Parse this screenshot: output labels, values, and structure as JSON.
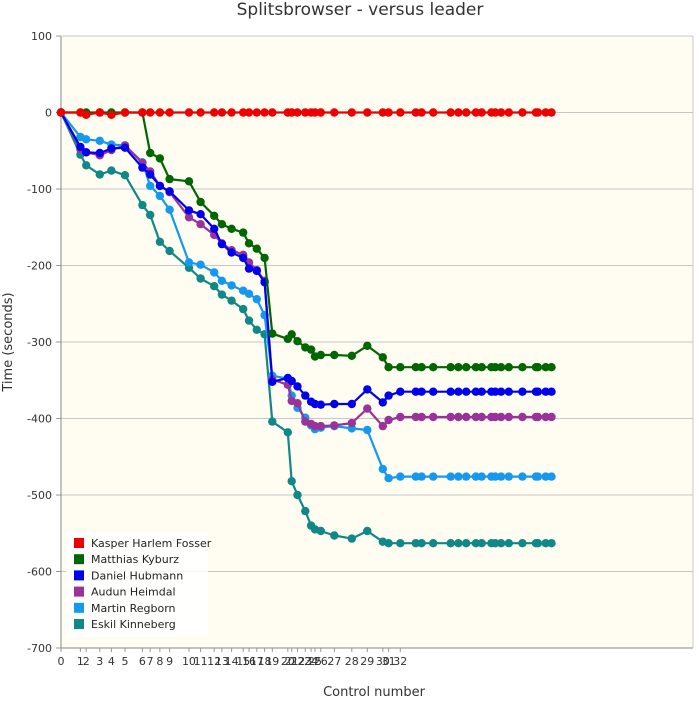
{
  "chart_data": {
    "type": "line",
    "title": "Splitsbrowser - versus leader",
    "xlabel": "Control number",
    "ylabel": "Time (seconds)",
    "ylim": [
      -700,
      100
    ],
    "yticks": [
      100,
      0,
      -100,
      -200,
      -300,
      -400,
      -500,
      -600,
      -700
    ],
    "xlim": [
      0,
      32.6
    ],
    "xtick_labels": [
      "0",
      "1",
      "2",
      "3",
      "4",
      "5",
      "6",
      "7",
      "8",
      "9",
      "10",
      "11",
      "12",
      "13",
      "14",
      "15",
      "16",
      "17",
      "18",
      "19",
      "20",
      "21",
      "22",
      "23",
      "24",
      "25",
      "26",
      "27",
      "28",
      "29",
      "30",
      "31",
      "32"
    ],
    "x": [
      0,
      1,
      1.3,
      2,
      2.6,
      3.3,
      4.2,
      4.6,
      5.1,
      5.6,
      6.6,
      7.2,
      7.9,
      8.3,
      8.8,
      9.4,
      9.7,
      10.1,
      10.5,
      10.9,
      11.7,
      11.9,
      12.2,
      12.6,
      12.9,
      13.1,
      13.4,
      14.1,
      15.0,
      15.8,
      16.6,
      16.9,
      17.5,
      18.3,
      18.6,
      19.2,
      20.1,
      20.5,
      20.9,
      21.4,
      21.7,
      22.2,
      22.4,
      22.7,
      23.1,
      23.8,
      24.5,
      24.6,
      25.0,
      25.3
    ],
    "grid": true,
    "legend_position": "bottom-left",
    "series": [
      {
        "name": "Kasper Harlem Fosser",
        "color": "#ee0000",
        "values": [
          0,
          0,
          -3,
          0,
          -3,
          0,
          0,
          0,
          0,
          0,
          0,
          0,
          0,
          0,
          0,
          0,
          0,
          0,
          0,
          0,
          0,
          0,
          0,
          0,
          0,
          0,
          0,
          0,
          0,
          0,
          0,
          0,
          0,
          0,
          0,
          0,
          0,
          0,
          0,
          0,
          0,
          0,
          0,
          0,
          0,
          0,
          0,
          0,
          0,
          0
        ]
      },
      {
        "name": "Matthias Kyburz",
        "color": "#006600",
        "values": [
          0,
          0,
          0,
          0,
          0,
          0,
          0,
          -53,
          -60,
          -87,
          -90,
          -117,
          -135,
          -146,
          -152,
          -157,
          -171,
          -178,
          -190,
          -289,
          -296,
          -290,
          -299,
          -307,
          -310,
          -319,
          -317,
          -317,
          -318,
          -305,
          -320,
          -333,
          -333,
          -333,
          -333,
          -333,
          -333,
          -333,
          -333,
          -333,
          -333,
          -333,
          -333,
          -333,
          -333,
          -333,
          -333,
          -333,
          -333,
          -333
        ]
      },
      {
        "name": "Daniel Hubmann",
        "color": "#0000ee",
        "values": [
          0,
          -45,
          -52,
          -53,
          -47,
          -46,
          -72,
          -81,
          -96,
          -103,
          -128,
          -133,
          -152,
          -172,
          -183,
          -190,
          -204,
          -207,
          -222,
          -352,
          -347,
          -351,
          -358,
          -370,
          -378,
          -381,
          -382,
          -381,
          -381,
          -362,
          -379,
          -370,
          -365,
          -365,
          -365,
          -365,
          -365,
          -365,
          -365,
          -365,
          -365,
          -365,
          -365,
          -365,
          -365,
          -365,
          -365,
          -365,
          -365,
          -365
        ]
      },
      {
        "name": "Audun Heimdal",
        "color": "#993399",
        "values": [
          0,
          -48,
          -52,
          -56,
          -49,
          -43,
          -66,
          -77,
          -96,
          -104,
          -137,
          -146,
          -160,
          -171,
          -180,
          -186,
          -196,
          -206,
          -220,
          -349,
          -356,
          -377,
          -380,
          -404,
          -407,
          -410,
          -410,
          -409,
          -406,
          -387,
          -410,
          -402,
          -398,
          -398,
          -398,
          -398,
          -398,
          -398,
          -398,
          -398,
          -398,
          -398,
          -398,
          -398,
          -398,
          -398,
          -398,
          -398,
          -398,
          -398
        ]
      },
      {
        "name": "Martin Regborn",
        "color": "#1499ee",
        "values": [
          0,
          -32,
          -35,
          -37,
          -42,
          -43,
          -65,
          -96,
          -109,
          -127,
          -196,
          -199,
          -209,
          -220,
          -226,
          -233,
          -237,
          -244,
          -265,
          -344,
          -348,
          -370,
          -386,
          -399,
          -409,
          -414,
          -412,
          -410,
          -413,
          -415,
          -466,
          -478,
          -476,
          -476,
          -476,
          -476,
          -476,
          -476,
          -476,
          -476,
          -476,
          -476,
          -476,
          -476,
          -476,
          -476,
          -476,
          -476,
          -476,
          -476
        ]
      },
      {
        "name": "Eskil Kinneberg",
        "color": "#118888",
        "values": [
          0,
          -55,
          -69,
          -81,
          -76,
          -82,
          -121,
          -134,
          -169,
          -181,
          -203,
          -217,
          -227,
          -238,
          -246,
          -257,
          -272,
          -284,
          -290,
          -404,
          -418,
          -482,
          -500,
          -521,
          -540,
          -545,
          -547,
          -553,
          -557,
          -547,
          -561,
          -563,
          -563,
          -563,
          -563,
          -563,
          -563,
          -563,
          -563,
          -563,
          -563,
          -563,
          -563,
          -563,
          -563,
          -563,
          -563,
          -563,
          -563,
          -563
        ]
      }
    ]
  }
}
